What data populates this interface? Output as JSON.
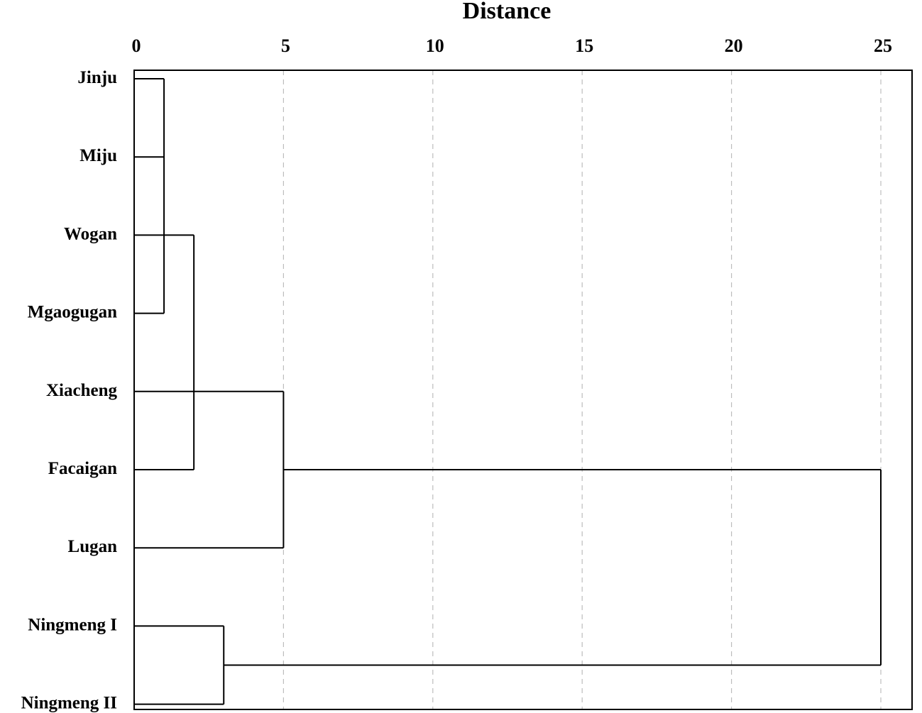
{
  "chart_data": {
    "type": "dendrogram",
    "title": "Distance",
    "x_ticks": [
      "0",
      "5",
      "10",
      "15",
      "20",
      "25"
    ],
    "x_range": [
      0,
      25
    ],
    "grid": "vertical dashed at ticks",
    "leaves": [
      "Jinju",
      "Miju",
      "Wogan",
      "Mgaogugan",
      "Xiacheng",
      "Facaigan",
      "Lugan",
      "Ningmeng I",
      "Ningmeng II"
    ],
    "merges": [
      {
        "a": [
          "leaf",
          0
        ],
        "b": [
          "leaf",
          3
        ],
        "height": 1.0
      },
      {
        "a": [
          "leaf",
          2
        ],
        "b": [
          "leaf",
          5
        ],
        "height": 2.0
      },
      {
        "a": [
          "leaf",
          7
        ],
        "b": [
          "leaf",
          8
        ],
        "height": 3.0
      },
      {
        "a": [
          "leaf",
          4
        ],
        "b": [
          "leaf",
          6
        ],
        "height": 5.0
      },
      {
        "a": [
          "merge",
          3
        ],
        "b": [
          "merge",
          2
        ],
        "height": 25.0
      }
    ],
    "stubs": [
      {
        "leaf": 1,
        "height": 1.0
      }
    ]
  }
}
